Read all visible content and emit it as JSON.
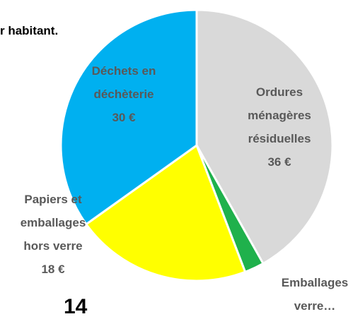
{
  "chart_data": {
    "type": "pie",
    "categories": [
      "Ordures ménagères résiduelles",
      "Emballages verre…",
      "Papiers et emballages hors verre",
      "Déchets en déchèterie"
    ],
    "values": [
      36,
      2,
      18,
      30
    ],
    "value_labels": [
      "36 €",
      null,
      "18 €",
      "30 €"
    ],
    "colors": [
      "#d9d9d9",
      "#1fb14c",
      "#ffff00",
      "#00b0f0"
    ],
    "annotations": [
      "r habitant.",
      "14"
    ]
  }
}
